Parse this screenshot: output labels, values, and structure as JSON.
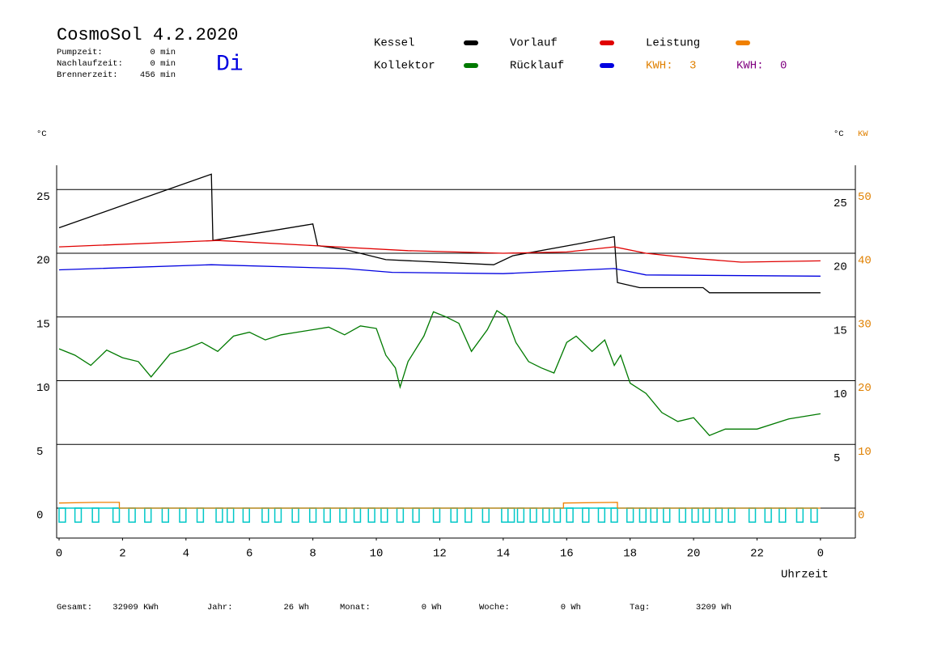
{
  "chart_data": {
    "type": "line",
    "title": "CosmoSol 4.2.2020",
    "day": "Di",
    "stats": [
      {
        "label": "Pumpzeit:",
        "value": "0 min"
      },
      {
        "label": "Nachlaufzeit:",
        "value": "0 min"
      },
      {
        "label": "Brennerzeit:",
        "value": "456 min"
      }
    ],
    "y_unit": "°C",
    "y2_units": [
      "°C",
      "KW"
    ],
    "x_label": "Uhrzeit",
    "xlim": [
      0,
      25.1
    ],
    "ylim": [
      -2.35,
      26.9
    ],
    "y2lim": [
      -4.7,
      53.8
    ],
    "xticks": [
      0,
      2,
      4,
      6,
      8,
      10,
      12,
      14,
      16,
      18,
      20,
      22,
      {
        "value": 24,
        "label": "0"
      }
    ],
    "yticks": [
      0,
      5,
      10,
      15,
      20,
      25
    ],
    "y2ticks": [
      0,
      10,
      20,
      30,
      40,
      50
    ],
    "right_celsius_ticks": [
      5,
      10,
      15,
      20,
      25
    ],
    "grid": true,
    "series": [
      {
        "name": "Kessel",
        "color": "#000000",
        "x": [
          0,
          4.8,
          4.85,
          8.0,
          8.15,
          9.0,
          10.3,
          13.7,
          14.3,
          16.5,
          17.5,
          17.6,
          18.3,
          20.3,
          20.5,
          24
        ],
        "values": [
          22.0,
          26.2,
          21.0,
          22.3,
          20.6,
          20.3,
          19.5,
          19.1,
          19.8,
          20.8,
          21.3,
          17.7,
          17.3,
          17.3,
          16.9,
          16.9
        ]
      },
      {
        "name": "Kollektor",
        "color": "#007a00",
        "x": [
          0,
          0.5,
          1,
          1.5,
          2,
          2.5,
          2.9,
          3.5,
          4,
          4.5,
          5,
          5.5,
          6,
          6.5,
          7,
          7.5,
          8,
          8.5,
          9,
          9.5,
          10,
          10.3,
          10.6,
          10.75,
          11,
          11.5,
          11.8,
          12.2,
          12.6,
          13,
          13.5,
          13.8,
          14.1,
          14.4,
          14.8,
          15.2,
          15.6,
          16,
          16.3,
          16.8,
          17.2,
          17.5,
          17.7,
          18,
          18.5,
          19,
          19.5,
          20,
          20.5,
          21,
          22,
          23,
          24
        ],
        "values": [
          12.5,
          12.0,
          11.2,
          12.4,
          11.8,
          11.5,
          10.3,
          12.1,
          12.5,
          13.0,
          12.3,
          13.5,
          13.8,
          13.2,
          13.6,
          13.8,
          14.0,
          14.2,
          13.6,
          14.3,
          14.1,
          12.0,
          11.0,
          9.5,
          11.5,
          13.5,
          15.4,
          15.0,
          14.5,
          12.3,
          14.0,
          15.5,
          15.0,
          13.0,
          11.5,
          11.0,
          10.6,
          13.0,
          13.5,
          12.3,
          13.2,
          11.2,
          12.0,
          9.8,
          9.0,
          7.5,
          6.8,
          7.1,
          5.7,
          6.2,
          6.2,
          7.0,
          7.4
        ]
      },
      {
        "name": "Vorlauf",
        "color": "#e00000",
        "x": [
          0,
          5,
          8,
          11,
          14,
          16,
          17.5,
          18.5,
          20,
          21.5,
          24
        ],
        "values": [
          20.5,
          21.0,
          20.6,
          20.2,
          20.0,
          20.1,
          20.5,
          20.0,
          19.6,
          19.3,
          19.4
        ]
      },
      {
        "name": "Rücklauf",
        "color": "#0000e0",
        "x": [
          0,
          4.8,
          9,
          10.5,
          14,
          17.5,
          18.5,
          24
        ],
        "values": [
          18.7,
          19.1,
          18.8,
          18.5,
          18.4,
          18.8,
          18.3,
          18.2
        ]
      },
      {
        "name": "Leistung",
        "color": "#f08000",
        "axis": "y2",
        "x": [
          0,
          1.2,
          1.9,
          1.9,
          15.9,
          15.9,
          17.6,
          17.6,
          24
        ],
        "values": [
          0.8,
          0.9,
          0.9,
          0,
          0,
          0.8,
          0.9,
          0,
          0
        ]
      }
    ],
    "kwh": [
      {
        "label": "KWH:",
        "value": 3,
        "color": "#e08000"
      },
      {
        "label": "KWH:",
        "value": 0,
        "color": "#800080"
      }
    ],
    "pump_pulses": {
      "color": "#00c8c8",
      "high": 0,
      "low": -1.1,
      "starts": [
        0,
        0.5,
        1.05,
        1.7,
        2.2,
        2.7,
        3.25,
        3.8,
        4.35,
        4.95,
        5.3,
        5.8,
        6.4,
        6.8,
        7.35,
        7.9,
        8.35,
        8.85,
        9.3,
        9.75,
        10.15,
        10.65,
        11.15,
        11.8,
        12.35,
        12.8,
        13.35,
        13.95,
        14.15,
        14.45,
        14.85,
        15.25,
        15.6,
        16.0,
        16.5,
        17.0,
        17.4,
        17.9,
        18.3,
        18.65,
        19.05,
        19.55,
        19.95,
        20.3,
        20.7,
        21.1,
        21.75,
        22.25,
        22.7,
        23.25,
        23.7
      ],
      "ends": [
        0.2,
        0.7,
        1.25,
        1.9,
        2.4,
        2.9,
        3.45,
        4.0,
        4.55,
        5.15,
        5.5,
        6.0,
        6.6,
        7.0,
        7.55,
        8.1,
        8.55,
        9.05,
        9.5,
        9.95,
        10.35,
        10.85,
        11.35,
        12.0,
        12.55,
        13.0,
        13.55,
        14.15,
        14.35,
        14.65,
        15.05,
        15.45,
        15.8,
        16.2,
        16.7,
        17.2,
        17.6,
        18.1,
        18.5,
        18.85,
        19.25,
        19.75,
        20.15,
        20.5,
        20.9,
        21.3,
        21.95,
        22.45,
        22.9,
        23.45,
        23.9
      ]
    },
    "totals": [
      {
        "label": "Gesamt:",
        "value": "32909 KWh"
      },
      {
        "label": "Jahr:",
        "value": "26 Wh"
      },
      {
        "label": "Monat:",
        "value": "0 Wh"
      },
      {
        "label": "Woche:",
        "value": "0 Wh"
      },
      {
        "label": "Tag:",
        "value": "3209 Wh"
      }
    ]
  }
}
